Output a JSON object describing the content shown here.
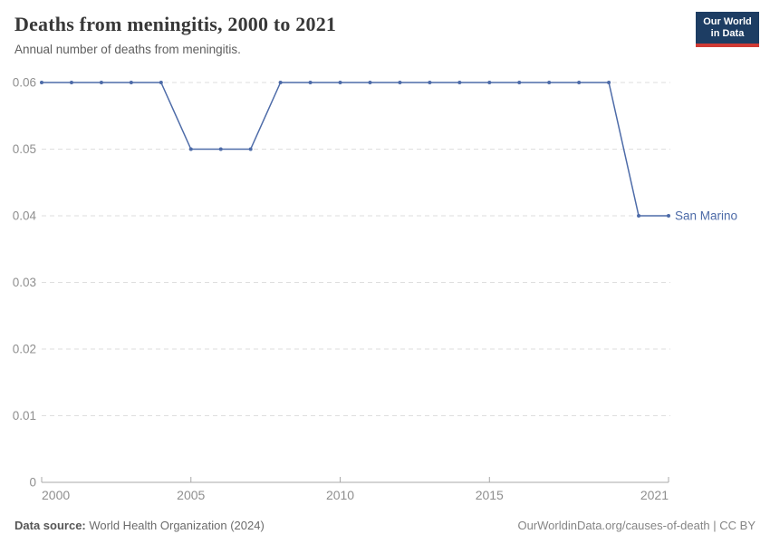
{
  "header": {
    "title": "Deaths from meningitis, 2000 to 2021",
    "subtitle": "Annual number of deaths from meningitis."
  },
  "logo": {
    "line1": "Our World",
    "line2": "in Data",
    "bg_color": "#1d3d63",
    "accent_color": "#cf3a34"
  },
  "footer": {
    "source_label": "Data source:",
    "source_value": " World Health Organization (2024)",
    "credit": "OurWorldinData.org/causes-of-death | CC BY"
  },
  "chart_data": {
    "type": "line",
    "title": "Deaths from meningitis, 2000 to 2021",
    "xlabel": "",
    "ylabel": "",
    "x": [
      2000,
      2001,
      2002,
      2003,
      2004,
      2005,
      2006,
      2007,
      2008,
      2009,
      2010,
      2011,
      2012,
      2013,
      2014,
      2015,
      2016,
      2017,
      2018,
      2019,
      2020,
      2021
    ],
    "series": [
      {
        "name": "San Marino",
        "color": "#4d6ba8",
        "values": [
          0.06,
          0.06,
          0.06,
          0.06,
          0.06,
          0.05,
          0.05,
          0.05,
          0.06,
          0.06,
          0.06,
          0.06,
          0.06,
          0.06,
          0.06,
          0.06,
          0.06,
          0.06,
          0.06,
          0.06,
          0.04,
          0.04
        ]
      }
    ],
    "xlim": [
      2000,
      2021
    ],
    "ylim": [
      0,
      0.06
    ],
    "x_ticks": [
      2000,
      2005,
      2010,
      2015,
      2021
    ],
    "y_ticks": [
      0,
      0.01,
      0.02,
      0.03,
      0.04,
      0.05,
      0.06
    ],
    "grid": "horizontal-dashed",
    "legend_position": "end-of-line-label",
    "colors": {
      "gridline": "#dedede",
      "axis": "#a8a8a8",
      "tick_label": "#8f8f8f"
    }
  }
}
